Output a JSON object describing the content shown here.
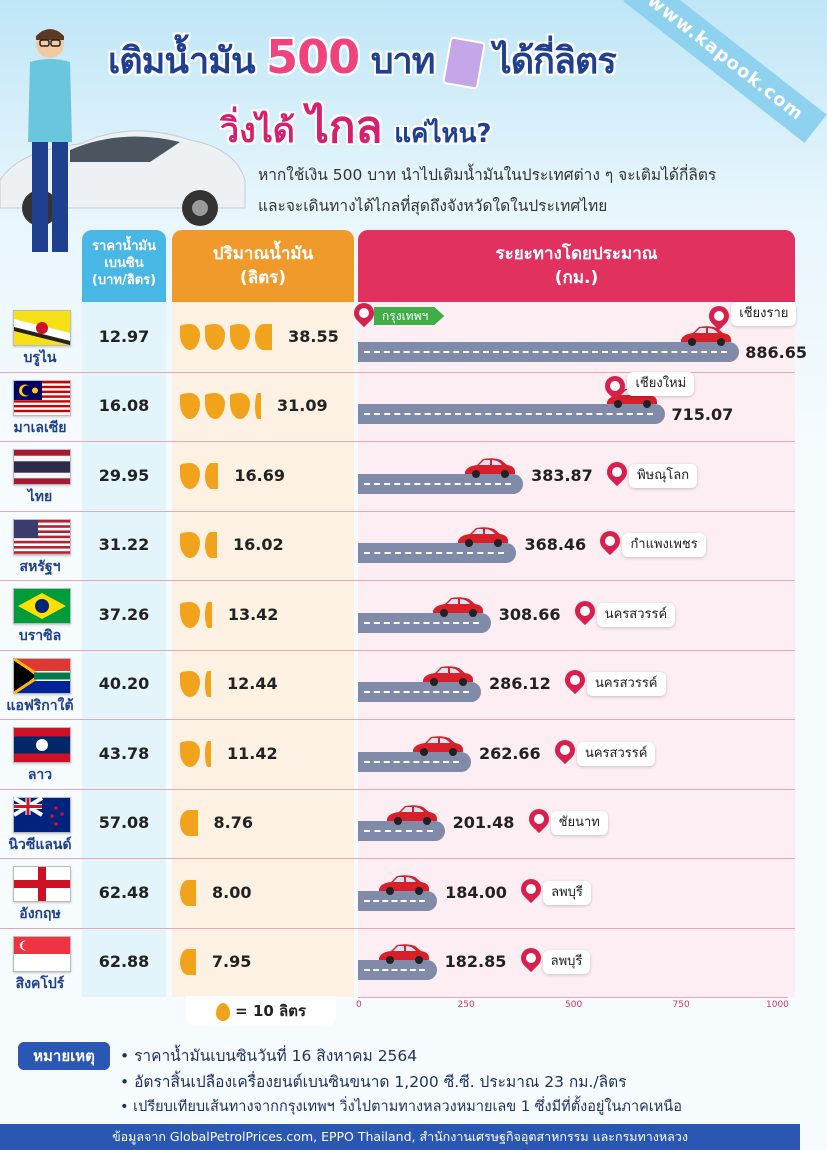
{
  "header": {
    "title_line1_a": "เติมน้ำมัน",
    "title_line1_big": "500",
    "title_line1_b": "บาท",
    "title_line1_c": "ได้กี่ลิตร",
    "title_line2_a": "วิ่งได้",
    "title_line2_big": "ไกล",
    "title_line2_b": "แค่ไหน?",
    "site": "www.kapook.com",
    "intro_line1": "หากใช้เงิน 500 บาท นำไปเติมน้ำมันในประเทศต่าง ๆ จะเติมได้กี่ลิตร",
    "intro_line2": "และจะเดินทางได้ไกลที่สุดถึงจังหวัดใดในประเทศไทย"
  },
  "columns": {
    "price_header": "ราคาน้ำมัน\nเบนซิน\n(บาท/ลิตร)",
    "volume_header": "ปริมาณน้ำมัน\n(ลิตร)",
    "distance_header": "ระยะทางโดยประมาณ\n(กม.)"
  },
  "start_label": "กรุงเทพฯ",
  "legend": "= 10 ลิตร",
  "axis_ticks": [
    "0",
    "250",
    "500",
    "750",
    "1000"
  ],
  "rows": [
    {
      "country": "บรูไน",
      "flag": "brunei",
      "price": "12.97",
      "liters": "38.55",
      "liters_val": 38.55,
      "distance": "886.65",
      "distance_val": 886.65,
      "province": "เชียงราย"
    },
    {
      "country": "มาเลเซีย",
      "flag": "malaysia",
      "price": "16.08",
      "liters": "31.09",
      "liters_val": 31.09,
      "distance": "715.07",
      "distance_val": 715.07,
      "province": "เชียงใหม่"
    },
    {
      "country": "ไทย",
      "flag": "thailand",
      "price": "29.95",
      "liters": "16.69",
      "liters_val": 16.69,
      "distance": "383.87",
      "distance_val": 383.87,
      "province": "พิษณุโลก"
    },
    {
      "country": "สหรัฐฯ",
      "flag": "usa",
      "price": "31.22",
      "liters": "16.02",
      "liters_val": 16.02,
      "distance": "368.46",
      "distance_val": 368.46,
      "province": "กำแพงเพชร"
    },
    {
      "country": "บราซิล",
      "flag": "brazil",
      "price": "37.26",
      "liters": "13.42",
      "liters_val": 13.42,
      "distance": "308.66",
      "distance_val": 308.66,
      "province": "นครสวรรค์"
    },
    {
      "country": "แอฟริกาใต้",
      "flag": "south-africa",
      "price": "40.20",
      "liters": "12.44",
      "liters_val": 12.44,
      "distance": "286.12",
      "distance_val": 286.12,
      "province": "นครสวรรค์"
    },
    {
      "country": "ลาว",
      "flag": "laos",
      "price": "43.78",
      "liters": "11.42",
      "liters_val": 11.42,
      "distance": "262.66",
      "distance_val": 262.66,
      "province": "นครสวรรค์"
    },
    {
      "country": "นิวซีแลนด์",
      "flag": "new-zealand",
      "price": "57.08",
      "liters": "8.76",
      "liters_val": 8.76,
      "distance": "201.48",
      "distance_val": 201.48,
      "province": "ชัยนาท"
    },
    {
      "country": "อังกฤษ",
      "flag": "england",
      "price": "62.48",
      "liters": "8.00",
      "liters_val": 8.0,
      "distance": "184.00",
      "distance_val": 184.0,
      "province": "ลพบุรี"
    },
    {
      "country": "สิงคโปร์",
      "flag": "singapore",
      "price": "62.88",
      "liters": "7.95",
      "liters_val": 7.95,
      "distance": "182.85",
      "distance_val": 182.85,
      "province": "ลพบุรี"
    }
  ],
  "notes": {
    "label": "หมายเหตุ",
    "items": [
      "ราคาน้ำมันเบนซินวันที่ 16 สิงหาคม 2564",
      "อัตราสิ้นเปลืองเครื่องยนต์เบนซินขนาด 1,200 ซี.ซี. ประมาณ 23 กม./ลิตร",
      "เปรียบเทียบเส้นทางจากกรุงเทพฯ วิ่งไปตามทางหลวงหมายเลข 1 ซึ่งมีที่ตั้งอยู่ในภาคเหนือ"
    ]
  },
  "footer": "ข้อมูลจาก GlobalPetrolPrices.com, EPPO Thailand, สำนักงานเศรษฐกิจอุตสาหกรรม และกรมทางหลวง",
  "colors": {
    "navy": "#1f3f8f",
    "pink": "#e0315f",
    "orange": "#f19a2c",
    "blue": "#49b7e6",
    "car": "#d81f2a",
    "road": "#7f8ba8"
  }
}
